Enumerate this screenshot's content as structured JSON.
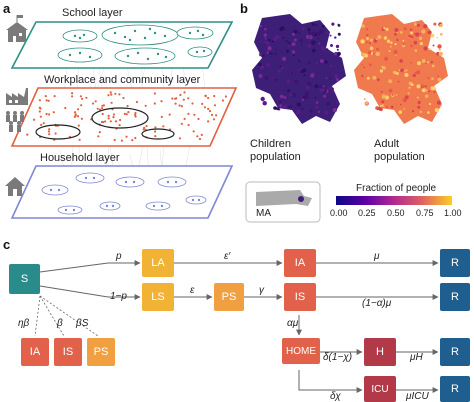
{
  "panels": {
    "a": "a",
    "b": "b",
    "c": "c"
  },
  "layers": {
    "school": "School layer",
    "workplace": "Workplace and community layer",
    "household": "Household layer"
  },
  "maps": {
    "children": [
      "Children",
      "population"
    ],
    "adult": [
      "Adult",
      "population"
    ],
    "inset_label": "MA",
    "legend_title": "Fraction of people",
    "ticks": [
      "0.00",
      "0.25",
      "0.50",
      "0.75",
      "1.00"
    ]
  },
  "colors": {
    "school_layer": "#2f8f83",
    "workplace_layer": "#e06040",
    "household_layer": "#7f86d6",
    "susceptible": "#2a8b8b",
    "latent": "#f2b233",
    "presymptomatic": "#f0a040",
    "infected": "#e2614a",
    "hospital": "#b23a48",
    "recovered": "#1f5f8f"
  },
  "icons": [
    "school-icon",
    "factory-icon",
    "people-icon",
    "house-icon"
  ],
  "model": {
    "nodes": {
      "S": "S",
      "LA": "LA",
      "LS": "LS",
      "PS": "PS",
      "IA": "IA",
      "IS": "IS",
      "HOME": "HOME",
      "H": "H",
      "ICU": "ICU",
      "R1": "R",
      "R2": "R",
      "R3": "R",
      "R4": "R",
      "IA_b": "IA",
      "IS_b": "IS",
      "PS_b": "PS"
    },
    "edges": {
      "p": "p",
      "one_minus_p": "1−p",
      "eps_prime": "ε′",
      "eps": "ε",
      "gamma": "γ",
      "mu": "μ",
      "one_minus_alpha_mu": "(1−α)μ",
      "alpha_mu": "αμ",
      "delta_one_minus_chi": "δ(1−χ)",
      "delta_chi": "δχ",
      "mu_h": "μH",
      "mu_icu": "μICU",
      "eta_beta": "ηβ",
      "beta": "β",
      "beta_s": "βS"
    }
  }
}
